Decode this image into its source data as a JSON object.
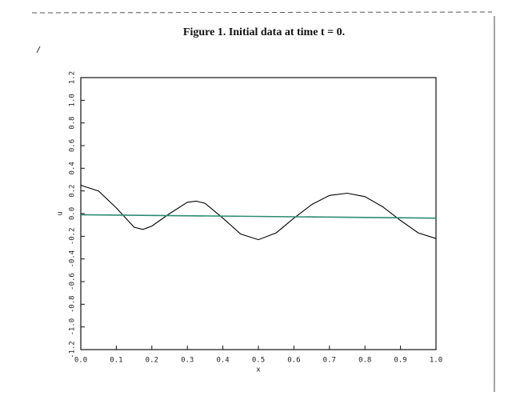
{
  "chart_data": {
    "type": "line",
    "title": "Figure 1. Initial data at time t = 0.",
    "xlabel": "x",
    "ylabel": "u",
    "xlim": [
      0,
      1
    ],
    "ylim": [
      -1.2,
      1.2
    ],
    "xticks": [
      {
        "value": 0,
        "label": "0.0"
      },
      0.1,
      0.2,
      0.3,
      0.4,
      0.5,
      0.6,
      0.7,
      0.8,
      0.9,
      {
        "value": 1,
        "label": "1.0"
      }
    ],
    "yticks": [
      -1.2,
      {
        "value": -1,
        "label": "-1.0"
      },
      -0.8,
      -0.6,
      -0.4,
      -0.2,
      {
        "value": 0,
        "label": "0.0"
      },
      0.2,
      0.4,
      0.6,
      0.8,
      {
        "value": 1,
        "label": "1.0"
      },
      1.2
    ],
    "series": [
      {
        "color": "#000000",
        "x": [
          0,
          0.05,
          0.1,
          0.15,
          0.175,
          0.2,
          0.25,
          0.3,
          0.325,
          0.35,
          0.4,
          0.45,
          0.5,
          0.55,
          0.6,
          0.65,
          0.7,
          0.75,
          0.8,
          0.85,
          0.9,
          0.95,
          1
        ],
        "values": [
          0.25,
          0.2,
          0.05,
          -0.12,
          -0.14,
          -0.11,
          0.0,
          0.1,
          0.11,
          0.09,
          -0.04,
          -0.18,
          -0.23,
          -0.17,
          -0.04,
          0.08,
          0.16,
          0.18,
          0.15,
          0.06,
          -0.06,
          -0.17,
          -0.22
        ]
      },
      {
        "color": "#2e8b72",
        "x": [
          0,
          1
        ],
        "values": [
          -0.01,
          -0.04
        ]
      }
    ]
  }
}
